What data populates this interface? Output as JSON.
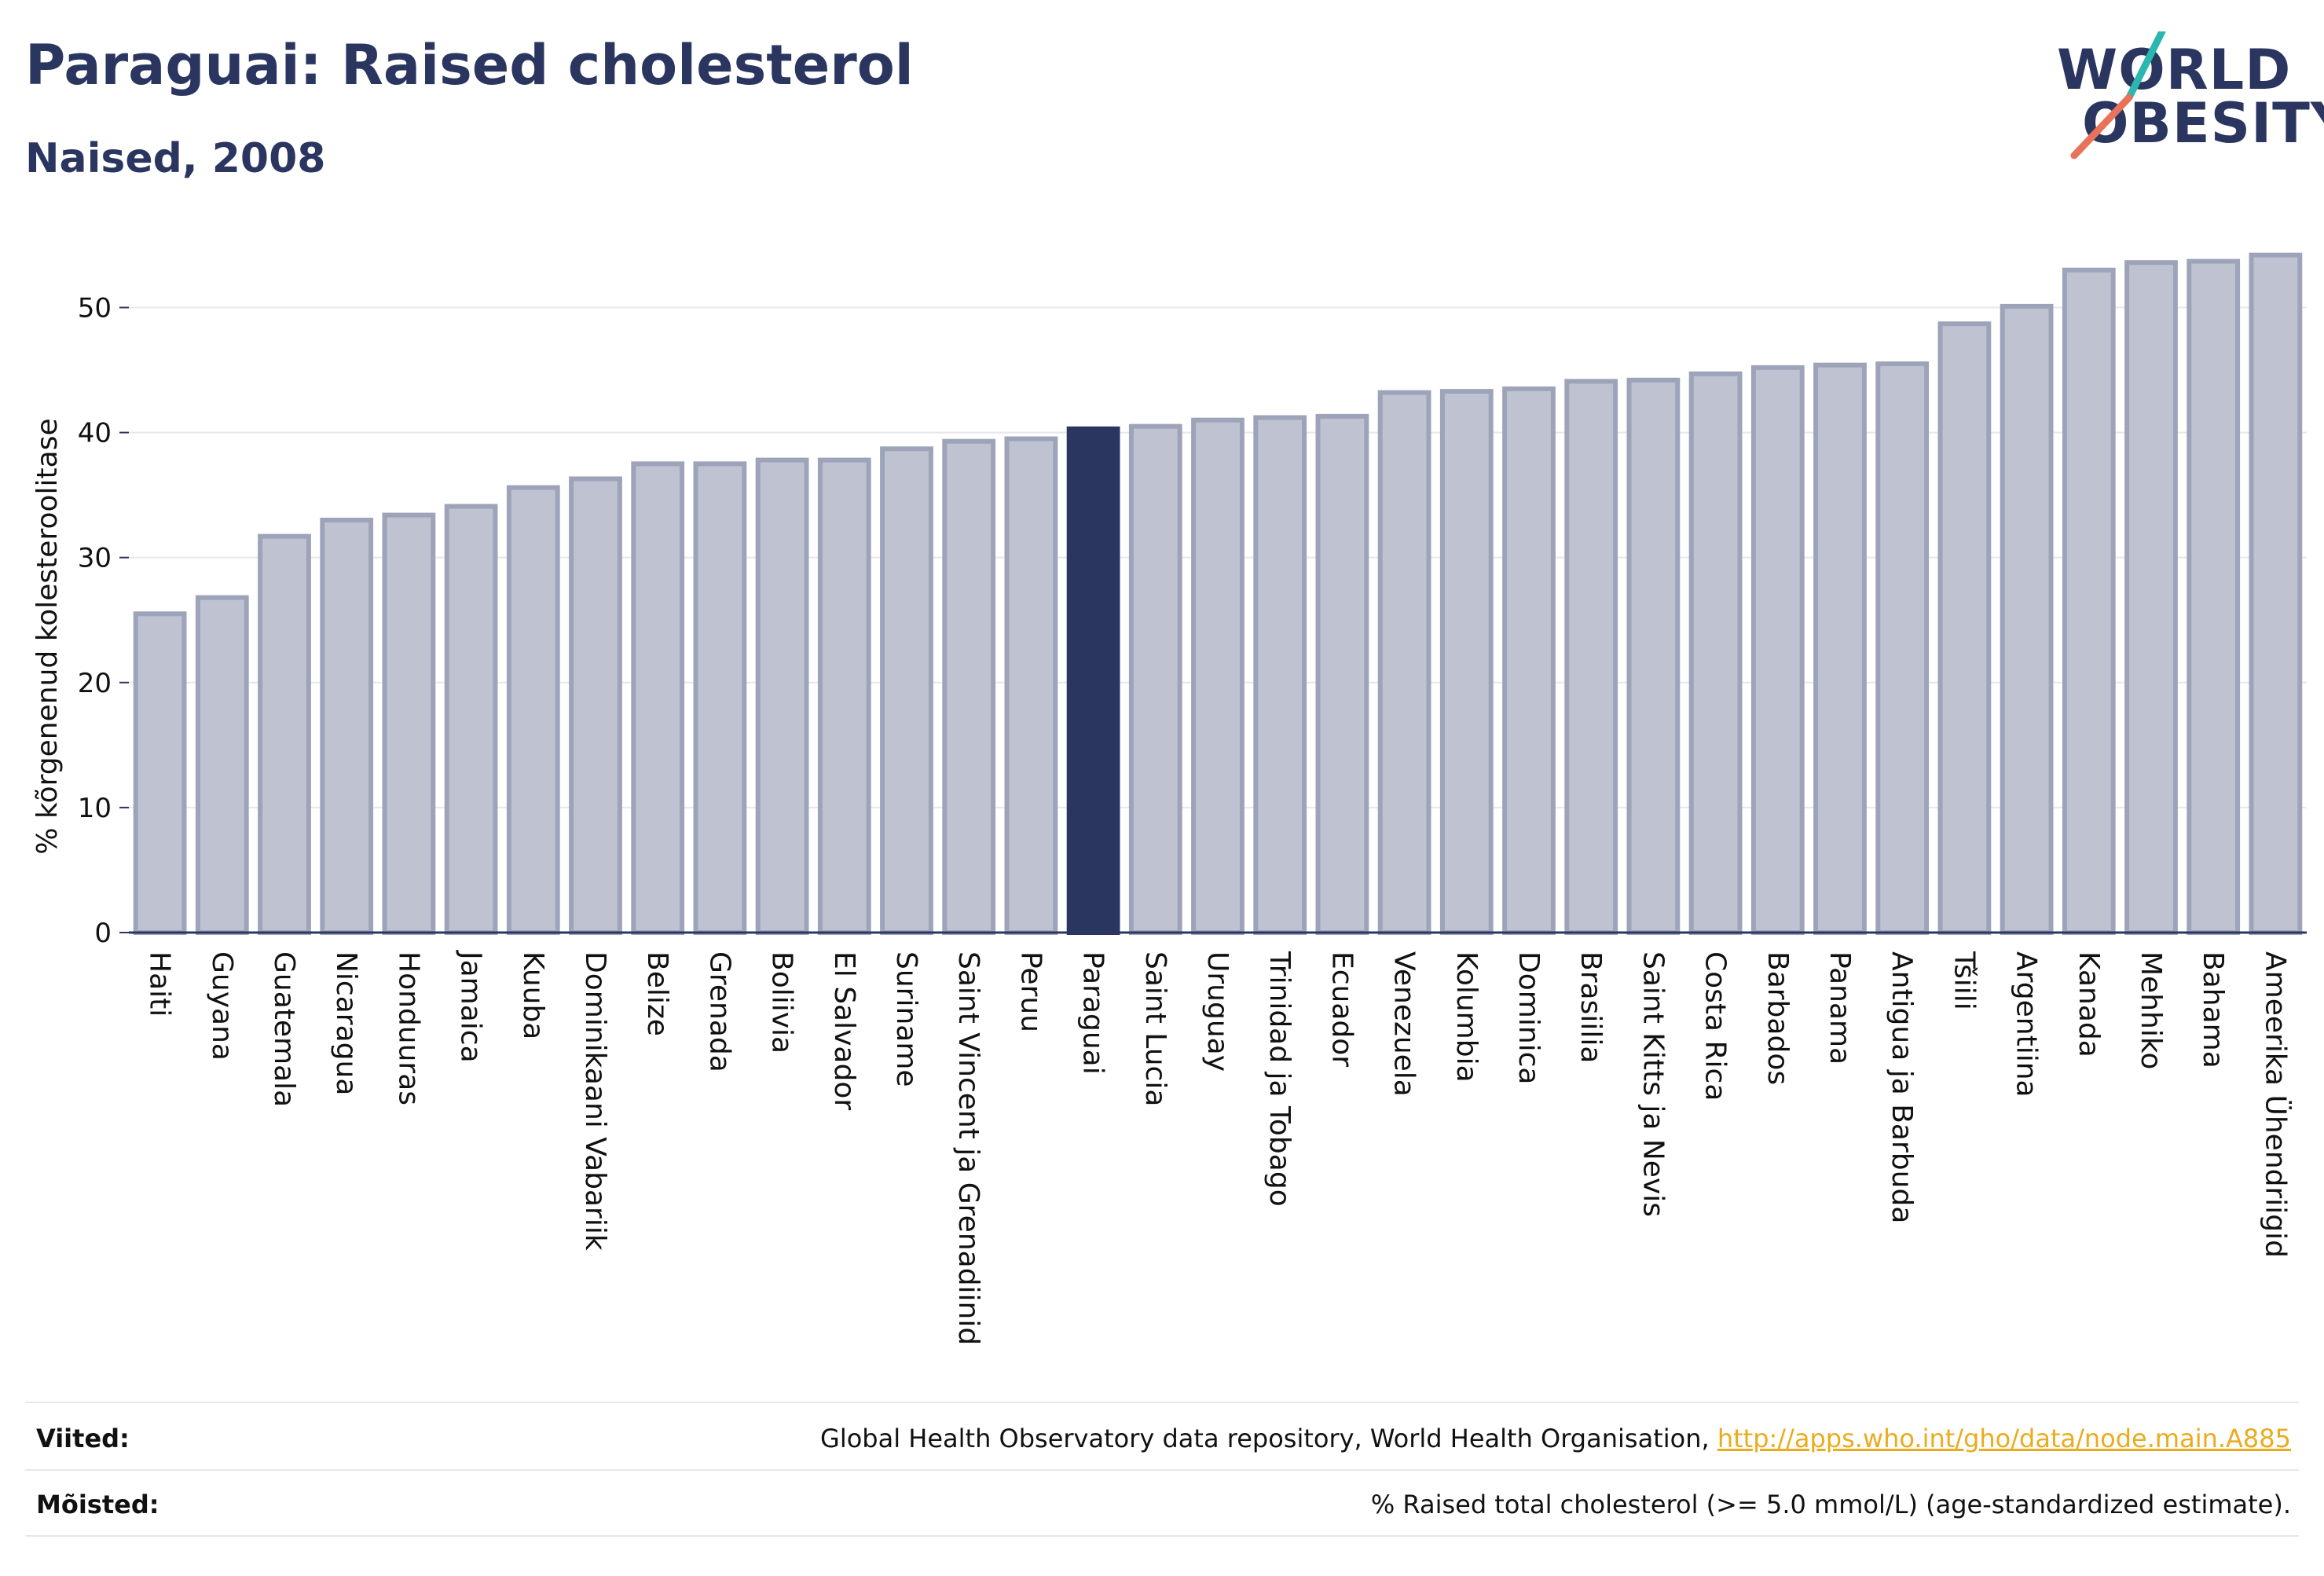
{
  "header": {
    "title": "Paraguai: Raised cholesterol",
    "subtitle": "Naised, 2008"
  },
  "logo": {
    "line1": "WORLD",
    "line2": "OBESITY",
    "colors": {
      "text": "#2b3660",
      "slash_teal": "#2ab7b0",
      "slash_coral": "#e8735a"
    }
  },
  "chart_data": {
    "type": "bar",
    "ylabel": "% kõrgenenud kolesteroolitase",
    "xlabel": "",
    "ylim": [
      0,
      56
    ],
    "yticks": [
      0,
      10,
      20,
      30,
      40,
      50
    ],
    "grid": true,
    "categories": [
      "Haiti",
      "Guyana",
      "Guatemala",
      "Nicaragua",
      "Honduuras",
      "Jamaica",
      "Kuuba",
      "Dominikaani Vabariik",
      "Belize",
      "Grenada",
      "Boliivia",
      "El Salvador",
      "Suriname",
      "Saint Vincent ja Grenadiinid",
      "Peruu",
      "Paraguai",
      "Saint Lucia",
      "Uruguay",
      "Trinidad ja Tobago",
      "Ecuador",
      "Venezuela",
      "Kolumbia",
      "Dominica",
      "Brasiilia",
      "Saint Kitts ja Nevis",
      "Costa Rica",
      "Barbados",
      "Panama",
      "Antigua ja Barbuda",
      "Tšiili",
      "Argentiina",
      "Kanada",
      "Mehhiko",
      "Bahama",
      "Ameerika Ühendriigid"
    ],
    "values": [
      25.5,
      26.8,
      31.7,
      33.0,
      33.4,
      34.1,
      35.6,
      36.3,
      37.5,
      37.5,
      37.8,
      37.8,
      38.7,
      39.3,
      39.5,
      40.3,
      40.5,
      41.0,
      41.2,
      41.3,
      43.2,
      43.3,
      43.5,
      44.1,
      44.2,
      44.7,
      45.2,
      45.4,
      45.5,
      48.7,
      50.1,
      53.0,
      53.6,
      53.7,
      54.2
    ],
    "highlight": "Paraguai",
    "colors": {
      "bar": "#bfc3d1",
      "bar_edge": "#9da3b9",
      "highlight": "#2b3660",
      "grid": "#e6e8ee",
      "axis": "#2b3660"
    }
  },
  "footer": {
    "references_label": "Viited:",
    "references_text": "Global Health Observatory data repository, World Health Organisation, ",
    "references_link": "http://apps.who.int/gho/data/node.main.A885",
    "definitions_label": "Mõisted:",
    "definitions_text": "% Raised total cholesterol (>= 5.0 mmol/L) (age-standardized estimate)."
  }
}
